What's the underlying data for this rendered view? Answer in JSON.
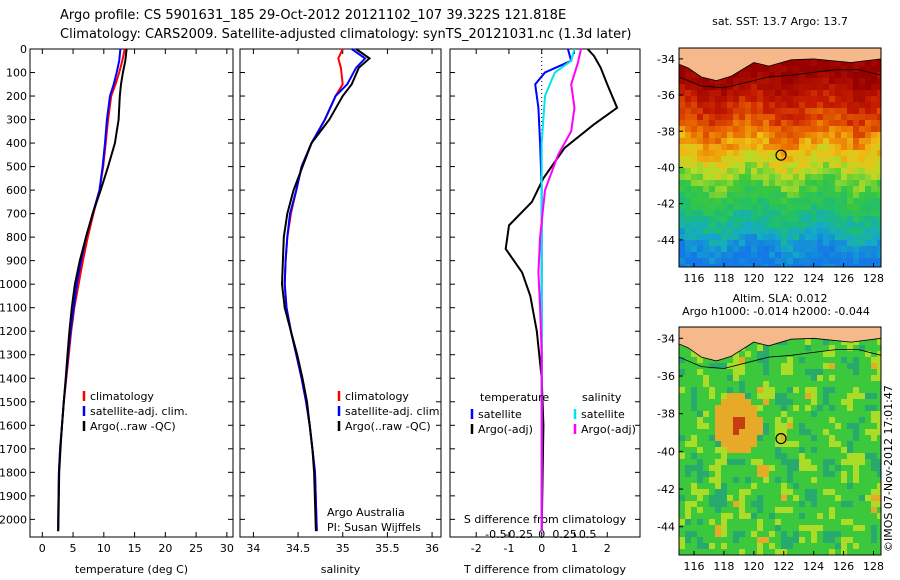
{
  "header": {
    "line1": "Argo profile: CS 5901631_185 29-Oct-2012 20121102_107 39.322S 121.818E",
    "line2": "Climatology: CARS2009. Satellite-adjusted climatology: synTS_20121031.nc (1.3d later)"
  },
  "colors": {
    "climatology": "#ff0000",
    "satellite": "#0000ff",
    "argo": "#000000",
    "sal_satellite": "#00e5ee",
    "sal_argo": "#ff00ff",
    "land": "#f5b98c",
    "float_marker": "#000000"
  },
  "credit": {
    "line1": "Argo Australia",
    "line2": "PI: Susan Wijffels",
    "stamp": "©IMOS 07-Nov-2012 17:01:47"
  },
  "chart_data": [
    {
      "id": "temperature-profile",
      "type": "line",
      "xlabel": "temperature (deg C)",
      "ylabel": "",
      "xlim": [
        -2,
        31
      ],
      "ylim": [
        2075,
        0
      ],
      "xticks": [
        0,
        5,
        10,
        15,
        20,
        25,
        30
      ],
      "yticks": [
        0,
        100,
        200,
        300,
        400,
        500,
        600,
        700,
        800,
        900,
        1000,
        1100,
        1200,
        1300,
        1400,
        1500,
        1600,
        1700,
        1800,
        1900,
        2000
      ],
      "legend": [
        "climatology",
        "satellite-adj. clim.",
        "Argo(..raw -QC)"
      ],
      "legend_position": "lower-right",
      "series": [
        {
          "name": "climatology",
          "color": "#ff0000",
          "x": [
            13.4,
            13.0,
            12.5,
            11.9,
            11.2,
            10.7,
            10.3,
            9.9,
            9.3,
            8.3,
            7.4,
            6.6,
            5.9,
            5.2,
            4.7,
            4.3,
            3.9,
            3.5,
            3.2,
            2.9,
            2.7,
            2.55
          ],
          "y": [
            0,
            50,
            100,
            150,
            200,
            300,
            400,
            500,
            600,
            700,
            800,
            900,
            1000,
            1100,
            1200,
            1300,
            1400,
            1500,
            1600,
            1700,
            1800,
            2050
          ]
        },
        {
          "name": "satellite-adj. clim.",
          "color": "#0000ff",
          "x": [
            12.7,
            12.5,
            12.1,
            11.6,
            11.0,
            10.5,
            10.2,
            9.8,
            9.3,
            8.2,
            7.1,
            6.3,
            5.6,
            5.1,
            4.6,
            4.2,
            3.85,
            3.5,
            3.2,
            2.9,
            2.7,
            2.55
          ],
          "y": [
            0,
            50,
            100,
            150,
            200,
            300,
            400,
            500,
            600,
            700,
            800,
            900,
            1000,
            1100,
            1200,
            1300,
            1400,
            1500,
            1600,
            1700,
            1800,
            2050
          ]
        },
        {
          "name": "Argo(..raw -QC)",
          "color": "#000000",
          "x": [
            13.7,
            13.5,
            13.1,
            12.8,
            12.6,
            12.4,
            11.8,
            10.7,
            9.5,
            8.2,
            7.1,
            6.1,
            5.3,
            4.8,
            4.4,
            4.1,
            3.8,
            3.5,
            3.2,
            2.95,
            2.75,
            2.6
          ],
          "y": [
            0,
            50,
            100,
            150,
            200,
            300,
            400,
            500,
            600,
            700,
            800,
            900,
            1000,
            1100,
            1200,
            1300,
            1400,
            1500,
            1600,
            1700,
            1800,
            2050
          ]
        }
      ]
    },
    {
      "id": "salinity-profile",
      "type": "line",
      "xlabel": "salinity",
      "xlim": [
        33.85,
        36.1
      ],
      "ylim": [
        2075,
        0
      ],
      "xticks": [
        34,
        34.5,
        35,
        35.5,
        36
      ],
      "legend": [
        "climatology",
        "satellite-adj. clim.",
        "Argo(..raw -QC)"
      ],
      "legend_position": "lower-right",
      "series": [
        {
          "name": "climatology",
          "color": "#ff0000",
          "x": [
            35.0,
            34.95,
            34.98,
            35.0,
            34.92,
            34.8,
            34.65,
            34.54,
            34.48,
            34.42,
            34.38,
            34.36,
            34.35,
            34.37,
            34.42,
            34.48,
            34.54,
            34.59,
            34.63,
            34.66,
            34.69,
            34.71
          ],
          "y": [
            0,
            40,
            80,
            150,
            200,
            300,
            400,
            500,
            600,
            700,
            800,
            900,
            1000,
            1100,
            1200,
            1300,
            1400,
            1500,
            1600,
            1700,
            1800,
            2050
          ]
        },
        {
          "name": "satellite-adj. clim.",
          "color": "#0000ff",
          "x": [
            35.1,
            35.25,
            35.15,
            35.05,
            34.92,
            34.8,
            34.65,
            34.54,
            34.48,
            34.41,
            34.38,
            34.36,
            34.35,
            34.37,
            34.42,
            34.48,
            34.54,
            34.59,
            34.63,
            34.66,
            34.69,
            34.71
          ],
          "y": [
            0,
            40,
            80,
            150,
            200,
            300,
            400,
            500,
            600,
            700,
            800,
            900,
            1000,
            1100,
            1200,
            1300,
            1400,
            1500,
            1600,
            1700,
            1800,
            2050
          ]
        },
        {
          "name": "Argo(..raw -QC)",
          "color": "#000000",
          "x": [
            35.15,
            35.3,
            35.18,
            35.1,
            35.0,
            34.85,
            34.65,
            34.55,
            34.45,
            34.38,
            34.34,
            34.33,
            34.32,
            34.35,
            34.42,
            34.49,
            34.55,
            34.6,
            34.63,
            34.66,
            34.68,
            34.7
          ],
          "y": [
            0,
            40,
            80,
            150,
            200,
            300,
            400,
            500,
            600,
            700,
            800,
            900,
            1000,
            1100,
            1200,
            1300,
            1400,
            1500,
            1600,
            1700,
            1800,
            2050
          ]
        }
      ]
    },
    {
      "id": "difference-profile",
      "type": "line",
      "xlabel": "T difference from climatology",
      "xlabel_top": "S difference from climatology",
      "xlim": [
        -2.8,
        3.0
      ],
      "ylim": [
        2075,
        0
      ],
      "xticks": [
        -2,
        -1,
        0,
        1,
        2
      ],
      "s_ticks": [
        -0.5,
        -0.25,
        0,
        0.25,
        0.5
      ],
      "s_tick_labels": [
        "-0.5",
        "-0.25",
        "0",
        "0.25",
        "0.5"
      ],
      "legend": [
        "temperature",
        "satellite",
        "Argo(-adj)",
        "salinity",
        "satellite",
        "Argo(-adj)"
      ],
      "legend_position": "lower",
      "series": [
        {
          "name": "satellite",
          "color": "#0000ff",
          "x": [
            0.8,
            0.9,
            0.1,
            -0.2,
            -0.1,
            -0.05,
            0,
            0,
            0,
            0,
            0,
            0
          ],
          "y": [
            0,
            50,
            100,
            150,
            250,
            400,
            600,
            800,
            1000,
            1200,
            1500,
            2050
          ]
        },
        {
          "name": "Argo(-adj)",
          "color": "#000000",
          "x": [
            1.4,
            1.6,
            1.8,
            2.0,
            2.3,
            1.6,
            0.7,
            0.05,
            -0.3,
            -1.0,
            -1.1,
            -0.6,
            -0.35,
            -0.15,
            0,
            0.05,
            0
          ],
          "y": [
            0,
            30,
            80,
            150,
            250,
            320,
            420,
            550,
            650,
            750,
            850,
            950,
            1050,
            1200,
            1400,
            1600,
            2050
          ]
        },
        {
          "name": "satellite",
          "color": "#00e5ee",
          "x": [
            1.0,
            0.9,
            0.4,
            0.1,
            0,
            0,
            0,
            0,
            0,
            0
          ],
          "y": [
            0,
            50,
            100,
            200,
            400,
            700,
            1000,
            1300,
            1600,
            2050
          ]
        },
        {
          "name": "Argo(-adj)",
          "color": "#ff00ff",
          "x": [
            1.2,
            1.1,
            0.9,
            1.0,
            0.95,
            0.9,
            0.5,
            0.1,
            -0.05,
            -0.1,
            -0.05,
            0,
            0
          ],
          "y": [
            0,
            60,
            150,
            250,
            300,
            350,
            450,
            600,
            800,
            950,
            1100,
            1300,
            2050
          ]
        }
      ]
    },
    {
      "id": "sst-map",
      "type": "heatmap",
      "title": "sat. SST: 13.7  Argo: 13.7",
      "xlim": [
        115,
        128.5
      ],
      "ylim": [
        -45.5,
        -33.4
      ],
      "xticks": [
        116,
        118,
        120,
        122,
        124,
        126,
        128
      ],
      "yticks": [
        -34,
        -36,
        -38,
        -40,
        -42,
        -44
      ],
      "float_position": {
        "lon": 121.818,
        "lat": -39.322
      }
    },
    {
      "id": "sla-map",
      "type": "heatmap",
      "title_line1": "Altim. SLA: 0.012",
      "title_line2": "Argo h1000: -0.014 h2000: -0.044",
      "xlim": [
        115,
        128.5
      ],
      "ylim": [
        -45.5,
        -33.4
      ],
      "xticks": [
        116,
        118,
        120,
        122,
        124,
        126,
        128
      ],
      "yticks": [
        -34,
        -36,
        -38,
        -40,
        -42,
        -44
      ],
      "float_position": {
        "lon": 121.818,
        "lat": -39.322
      }
    }
  ]
}
